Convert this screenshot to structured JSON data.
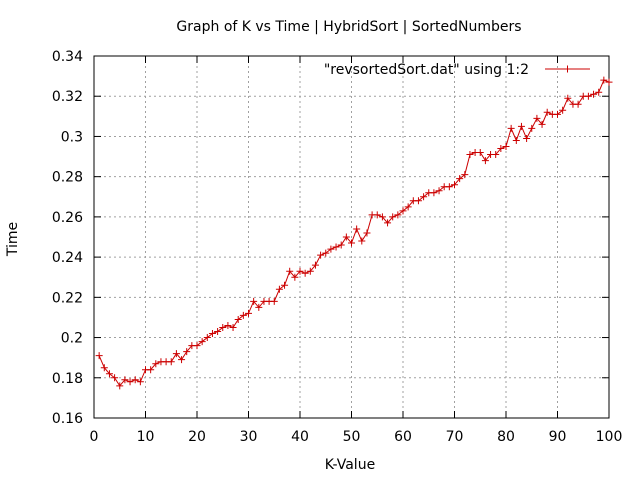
{
  "chart_data": {
    "type": "line",
    "title": "Graph of K vs Time | HybridSort | SortedNumbers",
    "xlabel": "K-Value",
    "ylabel": "Time",
    "xlim": [
      0,
      100
    ],
    "ylim": [
      0.16,
      0.34
    ],
    "x_ticks": [
      0,
      10,
      20,
      30,
      40,
      50,
      60,
      70,
      80,
      90,
      100
    ],
    "x_tick_labels": [
      "0",
      "10",
      "20",
      "30",
      "40",
      "50",
      "60",
      "70",
      "80",
      "90",
      "100"
    ],
    "y_ticks": [
      0.16,
      0.18,
      0.2,
      0.22,
      0.24,
      0.26,
      0.28,
      0.3,
      0.32,
      0.34
    ],
    "y_tick_labels": [
      "0.16",
      "0.18",
      "0.2",
      "0.22",
      "0.24",
      "0.26",
      "0.28",
      "0.3",
      "0.32",
      "0.34"
    ],
    "grid": true,
    "legend_position": "top-right",
    "colors": {
      "series": "#cc0000",
      "grid": "#a0a0a0",
      "axis": "#000000"
    },
    "series": [
      {
        "name": "\"revsortedSort.dat\" using 1:2",
        "marker": "plus",
        "x": [
          1,
          2,
          3,
          4,
          5,
          6,
          7,
          8,
          9,
          10,
          11,
          12,
          13,
          14,
          15,
          16,
          17,
          18,
          19,
          20,
          21,
          22,
          23,
          24,
          25,
          26,
          27,
          28,
          29,
          30,
          31,
          32,
          33,
          34,
          35,
          36,
          37,
          38,
          39,
          40,
          41,
          42,
          43,
          44,
          45,
          46,
          47,
          48,
          49,
          50,
          51,
          52,
          53,
          54,
          55,
          56,
          57,
          58,
          59,
          60,
          61,
          62,
          63,
          64,
          65,
          66,
          67,
          68,
          69,
          70,
          71,
          72,
          73,
          74,
          75,
          76,
          77,
          78,
          79,
          80,
          81,
          82,
          83,
          84,
          85,
          86,
          87,
          88,
          89,
          90,
          91,
          92,
          93,
          94,
          95,
          96,
          97,
          98,
          99,
          100
        ],
        "values": [
          0.191,
          0.185,
          0.182,
          0.18,
          0.176,
          0.179,
          0.178,
          0.179,
          0.178,
          0.184,
          0.184,
          0.187,
          0.188,
          0.188,
          0.188,
          0.192,
          0.189,
          0.193,
          0.196,
          0.196,
          0.198,
          0.2,
          0.202,
          0.203,
          0.205,
          0.206,
          0.205,
          0.209,
          0.211,
          0.212,
          0.218,
          0.215,
          0.218,
          0.218,
          0.218,
          0.224,
          0.226,
          0.233,
          0.23,
          0.233,
          0.232,
          0.233,
          0.236,
          0.241,
          0.242,
          0.244,
          0.245,
          0.246,
          0.25,
          0.247,
          0.254,
          0.248,
          0.252,
          0.261,
          0.261,
          0.26,
          0.257,
          0.26,
          0.261,
          0.263,
          0.265,
          0.268,
          0.268,
          0.27,
          0.272,
          0.272,
          0.273,
          0.275,
          0.275,
          0.276,
          0.279,
          0.281,
          0.291,
          0.292,
          0.292,
          0.288,
          0.291,
          0.291,
          0.294,
          0.295,
          0.304,
          0.298,
          0.305,
          0.299,
          0.304,
          0.309,
          0.306,
          0.312,
          0.311,
          0.311,
          0.313,
          0.319,
          0.316,
          0.316,
          0.32,
          0.32,
          0.321,
          0.322,
          0.328,
          0.327
        ]
      }
    ]
  }
}
